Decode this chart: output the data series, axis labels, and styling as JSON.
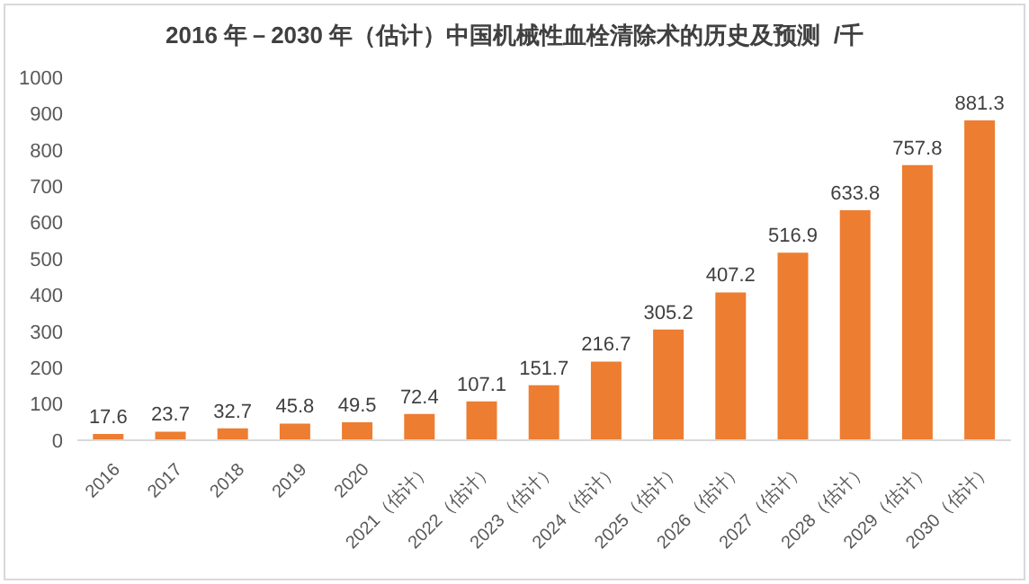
{
  "chart_data": {
    "type": "bar",
    "title": "2016 年－2030 年（估计）中国机械性血栓清除术的历史及预测  /千",
    "categories": [
      "2016",
      "2017",
      "2018",
      "2019",
      "2020",
      "2021（估计）",
      "2022（估计）",
      "2023（估计）",
      "2024（估计）",
      "2025（估计）",
      "2026（估计）",
      "2027（估计）",
      "2028（估计）",
      "2029（估计）",
      "2030（估计）"
    ],
    "values": [
      17.6,
      23.7,
      32.7,
      45.8,
      49.5,
      72.4,
      107.1,
      151.7,
      216.7,
      305.2,
      407.2,
      516.9,
      633.8,
      757.8,
      881.3
    ],
    "color": "#ed7d31",
    "ylim": [
      0,
      1000
    ],
    "yticks": [
      0,
      100,
      200,
      300,
      400,
      500,
      600,
      700,
      800,
      900,
      1000
    ],
    "data_labels": true,
    "grid": false
  }
}
